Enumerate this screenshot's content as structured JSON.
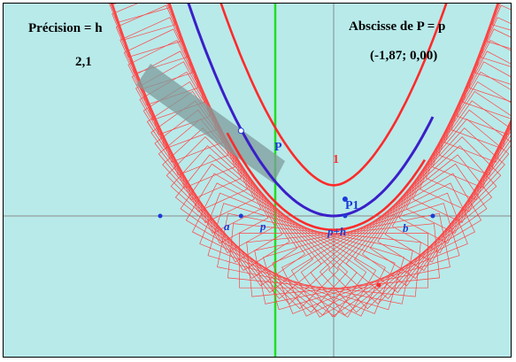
{
  "colors": {
    "background": "#b8eaea",
    "axes": "#8a8a8a",
    "y_axis_highlight": "#22dd22",
    "envelope": "#ff2a2a",
    "rectangles": "#ff4444",
    "curve": "#3a1fc8",
    "points": "#1a3ad8",
    "band": "#7f9b9b",
    "label_text": "#000000"
  },
  "precision": {
    "label": "Précision = h",
    "value": "2,1"
  },
  "abscissa": {
    "label": "Abscisse de P = p",
    "value": "(-1,87; 0,00)"
  },
  "unit_label": "1",
  "points": {
    "P": {
      "label": "P",
      "x": -1.87,
      "y": 1.72
    },
    "P1": {
      "label": "P1",
      "x": 0.23,
      "y": 0.34
    },
    "a": {
      "label": "a",
      "x": -3.5,
      "y": 0
    },
    "p": {
      "label": "p",
      "x": -1.87,
      "y": 0
    },
    "p_plus_h": {
      "label": "p+h",
      "x": 0.23,
      "y": 0
    },
    "b": {
      "label": "b",
      "x": 2.0,
      "y": 0
    }
  },
  "curve_domain": [
    -3.5,
    2.0
  ]
}
